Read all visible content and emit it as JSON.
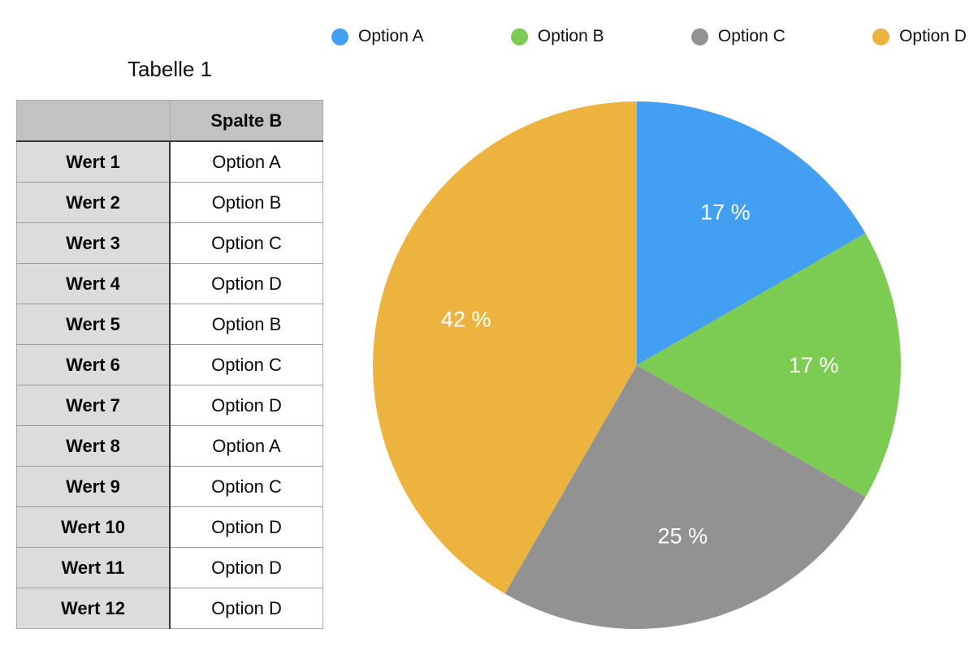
{
  "page": {
    "background_color": "#ffffff"
  },
  "table": {
    "title": "Tabelle 1",
    "corner_header": "",
    "column_header": "Spalte B",
    "rows": [
      {
        "label": "Wert 1",
        "value": "Option A"
      },
      {
        "label": "Wert 2",
        "value": "Option B"
      },
      {
        "label": "Wert 3",
        "value": "Option C"
      },
      {
        "label": "Wert 4",
        "value": "Option D"
      },
      {
        "label": "Wert 5",
        "value": "Option B"
      },
      {
        "label": "Wert 6",
        "value": "Option C"
      },
      {
        "label": "Wert 7",
        "value": "Option D"
      },
      {
        "label": "Wert 8",
        "value": "Option A"
      },
      {
        "label": "Wert 9",
        "value": "Option C"
      },
      {
        "label": "Wert 10",
        "value": "Option D"
      },
      {
        "label": "Wert 11",
        "value": "Option D"
      },
      {
        "label": "Wert 12",
        "value": "Option D"
      }
    ],
    "header_bg": "#c1c3c2",
    "row_label_bg": "#dcdcdc"
  },
  "chart_data": {
    "type": "pie",
    "title": "",
    "slices": [
      {
        "name": "Option A",
        "value": 2,
        "percent": 16.67,
        "percent_label": "17 %",
        "color": "#439ff1"
      },
      {
        "name": "Option B",
        "value": 2,
        "percent": 16.67,
        "percent_label": "17 %",
        "color": "#7ccc53"
      },
      {
        "name": "Option C",
        "value": 3,
        "percent": 25.0,
        "percent_label": "25 %",
        "color": "#929292"
      },
      {
        "name": "Option D",
        "value": 5,
        "percent": 41.67,
        "percent_label": "42 %",
        "color": "#ecb43f"
      }
    ],
    "start_angle_deg": 0,
    "direction": "clockwise",
    "label_radius_fraction": 0.67,
    "label_color": "#ffffff",
    "legend_position": "top"
  }
}
